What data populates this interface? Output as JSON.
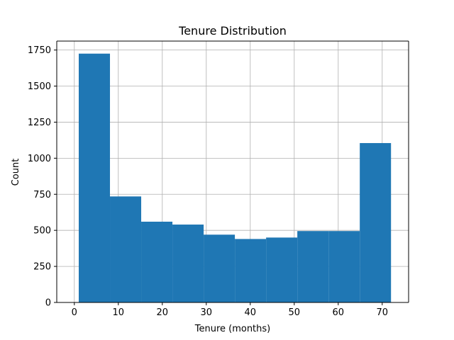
{
  "chart_data": {
    "type": "bar",
    "title": "Tenure Distribution",
    "xlabel": "Tenure (months)",
    "ylabel": "Count",
    "bin_edges": [
      1,
      8.1,
      15.2,
      22.3,
      29.4,
      36.5,
      43.6,
      50.7,
      57.8,
      64.9,
      72
    ],
    "values": [
      1725,
      735,
      560,
      540,
      470,
      440,
      450,
      495,
      495,
      1105
    ],
    "xlim": [
      -4,
      76
    ],
    "ylim": [
      0,
      1812
    ],
    "x_ticks": [
      0,
      10,
      20,
      30,
      40,
      50,
      60,
      70
    ],
    "x_tick_labels": [
      "0",
      "10",
      "20",
      "30",
      "40",
      "50",
      "60",
      "70"
    ],
    "y_ticks": [
      0,
      250,
      500,
      750,
      1000,
      1250,
      1500,
      1750
    ],
    "y_tick_labels": [
      "0",
      "250",
      "500",
      "750",
      "1000",
      "1250",
      "1500",
      "1750"
    ],
    "grid": true,
    "bar_color": "#1f77b4",
    "grid_color": "#b0b0b0"
  }
}
